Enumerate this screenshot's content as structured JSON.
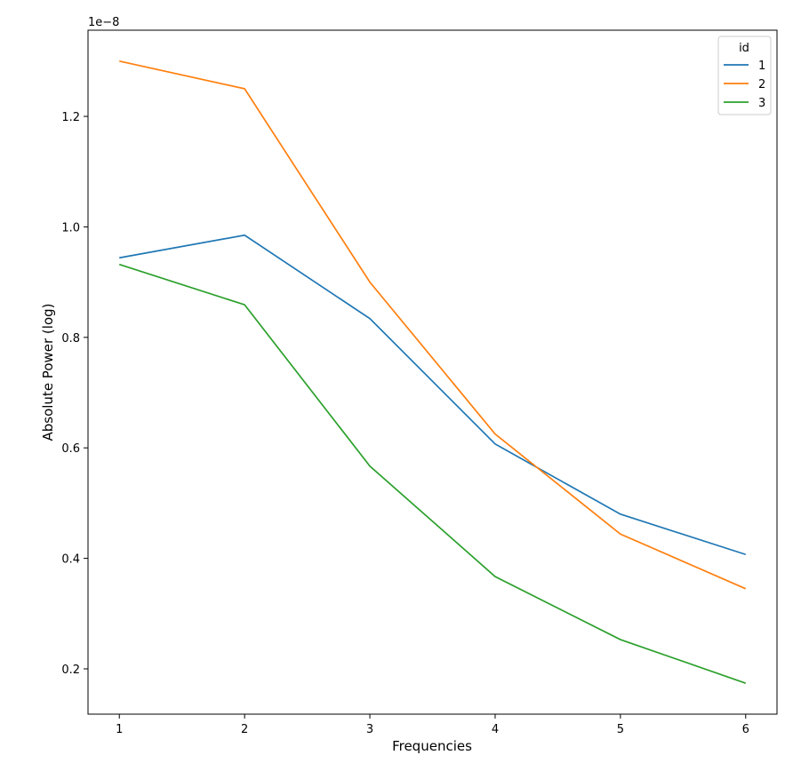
{
  "chart_data": {
    "type": "line",
    "title": "",
    "xlabel": "Frequencies",
    "ylabel": "Absolute Power (log)",
    "y_offset_label": "1e−8",
    "x": [
      1,
      2,
      3,
      4,
      5,
      6
    ],
    "xticks": [
      "1",
      "2",
      "3",
      "4",
      "5",
      "6"
    ],
    "yticks": [
      0.2,
      0.4,
      0.6,
      0.8,
      1.0,
      1.2
    ],
    "ytick_labels": [
      "0.2",
      "0.4",
      "0.6",
      "0.8",
      "1.0",
      "1.2"
    ],
    "xlim": [
      0.75,
      6.25
    ],
    "ylim": [
      0.118,
      1.356
    ],
    "grid": false,
    "legend": {
      "title": "id",
      "placement": "top-right"
    },
    "series": [
      {
        "name": "1",
        "color": "#1f77b4",
        "values": [
          0.944,
          0.985,
          0.834,
          0.607,
          0.48,
          0.407
        ]
      },
      {
        "name": "2",
        "color": "#ff7f0e",
        "values": [
          1.3,
          1.25,
          0.9,
          0.625,
          0.444,
          0.345
        ]
      },
      {
        "name": "3",
        "color": "#2ca02c",
        "values": [
          0.932,
          0.859,
          0.567,
          0.367,
          0.253,
          0.174
        ]
      }
    ]
  }
}
